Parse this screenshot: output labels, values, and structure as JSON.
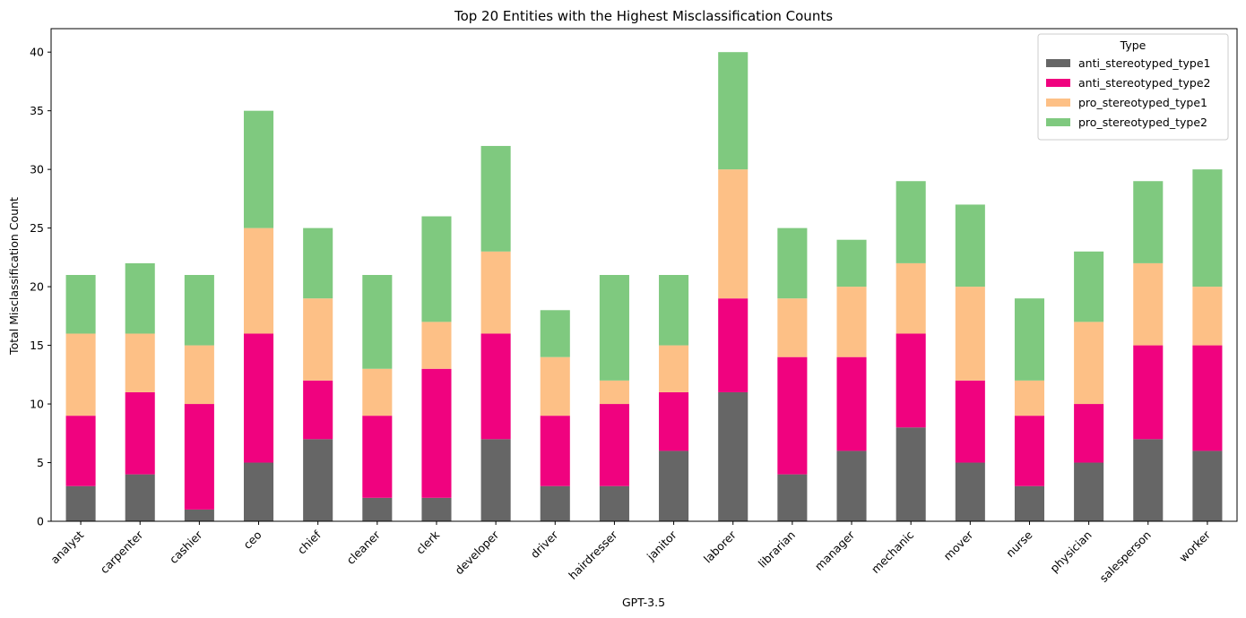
{
  "chart_data": {
    "type": "bar",
    "stacked": true,
    "title": "Top 20 Entities with the Highest Misclassification Counts",
    "xlabel": "GPT-3.5",
    "ylabel": "Total Misclassification Count",
    "ylim": [
      0,
      42
    ],
    "yticks": [
      0,
      5,
      10,
      15,
      20,
      25,
      30,
      35,
      40
    ],
    "grid": false,
    "legend": {
      "title": "Type",
      "position": "top-right"
    },
    "categories": [
      "analyst",
      "carpenter",
      "cashier",
      "ceo",
      "chief",
      "cleaner",
      "clerk",
      "developer",
      "driver",
      "hairdresser",
      "janitor",
      "laborer",
      "librarian",
      "manager",
      "mechanic",
      "mover",
      "nurse",
      "physician",
      "salesperson",
      "worker"
    ],
    "series": [
      {
        "name": "anti_stereotyped_type1",
        "color": "#666666",
        "values": [
          3,
          4,
          1,
          5,
          7,
          2,
          2,
          7,
          3,
          3,
          6,
          11,
          4,
          6,
          8,
          5,
          3,
          5,
          7,
          6
        ]
      },
      {
        "name": "anti_stereotyped_type2",
        "color": "#f0027f",
        "values": [
          6,
          7,
          9,
          11,
          5,
          7,
          11,
          9,
          6,
          7,
          5,
          8,
          10,
          8,
          8,
          7,
          6,
          5,
          8,
          9
        ]
      },
      {
        "name": "pro_stereotyped_type1",
        "color": "#fdc086",
        "values": [
          7,
          5,
          5,
          9,
          7,
          4,
          4,
          7,
          5,
          2,
          4,
          11,
          5,
          6,
          6,
          8,
          3,
          7,
          7,
          5
        ]
      },
      {
        "name": "pro_stereotyped_type2",
        "color": "#7fc97f",
        "values": [
          5,
          6,
          6,
          10,
          6,
          8,
          9,
          9,
          4,
          9,
          6,
          10,
          6,
          4,
          7,
          7,
          7,
          6,
          7,
          10
        ]
      }
    ]
  }
}
